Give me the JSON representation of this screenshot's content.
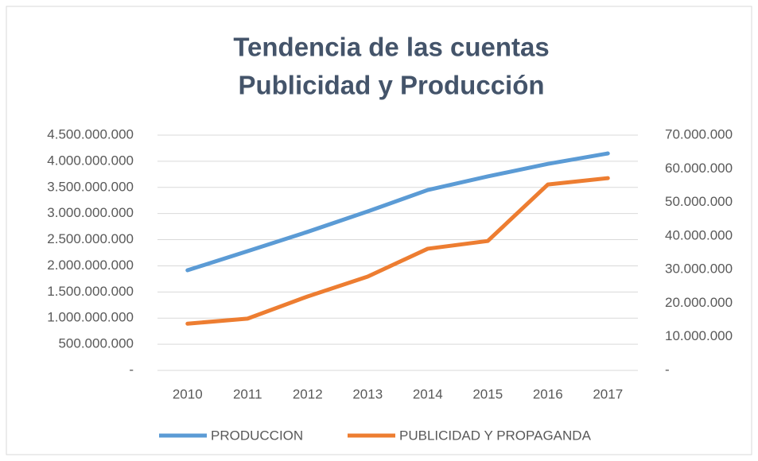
{
  "chart_data": {
    "type": "line",
    "title": [
      "Tendencia de las cuentas",
      "Publicidad y Producción"
    ],
    "categories": [
      "2010",
      "2011",
      "2012",
      "2013",
      "2014",
      "2015",
      "2016",
      "2017"
    ],
    "series": [
      {
        "name": "PRODUCCION",
        "color": "#5b9bd5",
        "values": [
          1915000000,
          2280000000,
          2650000000,
          3040000000,
          3450000000,
          3710000000,
          3950000000,
          4150000000
        ]
      },
      {
        "name": "PUBLICIDAD Y PROPAGANDA",
        "color": "#ed7d31",
        "axis": "y2",
        "values": [
          13900000,
          15400000,
          22000000,
          27900000,
          36200000,
          38500000,
          55300000,
          57200000
        ]
      }
    ],
    "ylim": [
      0,
      4500000000
    ],
    "yticks": [
      {
        "value": 0,
        "label": "-"
      },
      {
        "value": 500000000,
        "label": "500.000.000"
      },
      {
        "value": 1000000000,
        "label": "1.000.000.000"
      },
      {
        "value": 1500000000,
        "label": "1.500.000.000"
      },
      {
        "value": 2000000000,
        "label": "2.000.000.000"
      },
      {
        "value": 2500000000,
        "label": "2.500.000.000"
      },
      {
        "value": 3000000000,
        "label": "3.000.000.000"
      },
      {
        "value": 3500000000,
        "label": "3.500.000.000"
      },
      {
        "value": 4000000000,
        "label": "4.000.000.000"
      },
      {
        "value": 4500000000,
        "label": "4.500.000.000"
      }
    ],
    "y2lim": [
      0,
      70000000
    ],
    "y2ticks": [
      {
        "value": 0,
        "label": "-"
      },
      {
        "value": 10000000,
        "label": "10.000.000"
      },
      {
        "value": 20000000,
        "label": "20.000.000"
      },
      {
        "value": 30000000,
        "label": "30.000.000"
      },
      {
        "value": 40000000,
        "label": "40.000.000"
      },
      {
        "value": 50000000,
        "label": "50.000.000"
      },
      {
        "value": 60000000,
        "label": "60.000.000"
      },
      {
        "value": 70000000,
        "label": "70.000.000"
      }
    ],
    "grid": true,
    "legend": "bottom"
  }
}
